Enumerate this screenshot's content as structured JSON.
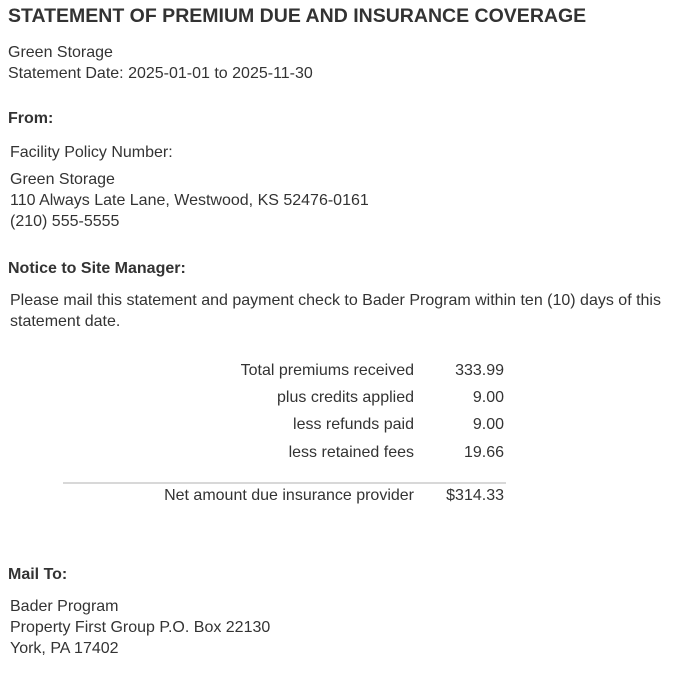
{
  "title": "STATEMENT OF PREMIUM DUE AND INSURANCE COVERAGE",
  "header": {
    "company": "Green Storage",
    "statement_date": "Statement Date: 2025-01-01 to 2025-11-30"
  },
  "from": {
    "heading": "From:",
    "policy_label": "Facility Policy Number:",
    "name": "Green Storage",
    "address": "110 Always Late Lane, Westwood, KS 52476-0161",
    "phone": "(210) 555-5555"
  },
  "notice": {
    "heading": "Notice to Site Manager:",
    "line1": "Please mail this statement and payment check to Bader Program within ten (10) days of this",
    "line2": "statement date."
  },
  "summary": {
    "rows": [
      {
        "label": "Total premiums received",
        "value": "333.99"
      },
      {
        "label": "plus credits applied",
        "value": "9.00"
      },
      {
        "label": "less refunds paid",
        "value": "9.00"
      },
      {
        "label": "less retained fees",
        "value": "19.66"
      }
    ],
    "net_label": "Net amount due insurance provider",
    "net_value": "$314.33"
  },
  "mail_to": {
    "heading": "Mail To:",
    "line1": "Bader Program",
    "line2": "Property First Group P.O. Box 22130",
    "line3": "York, PA 17402"
  }
}
